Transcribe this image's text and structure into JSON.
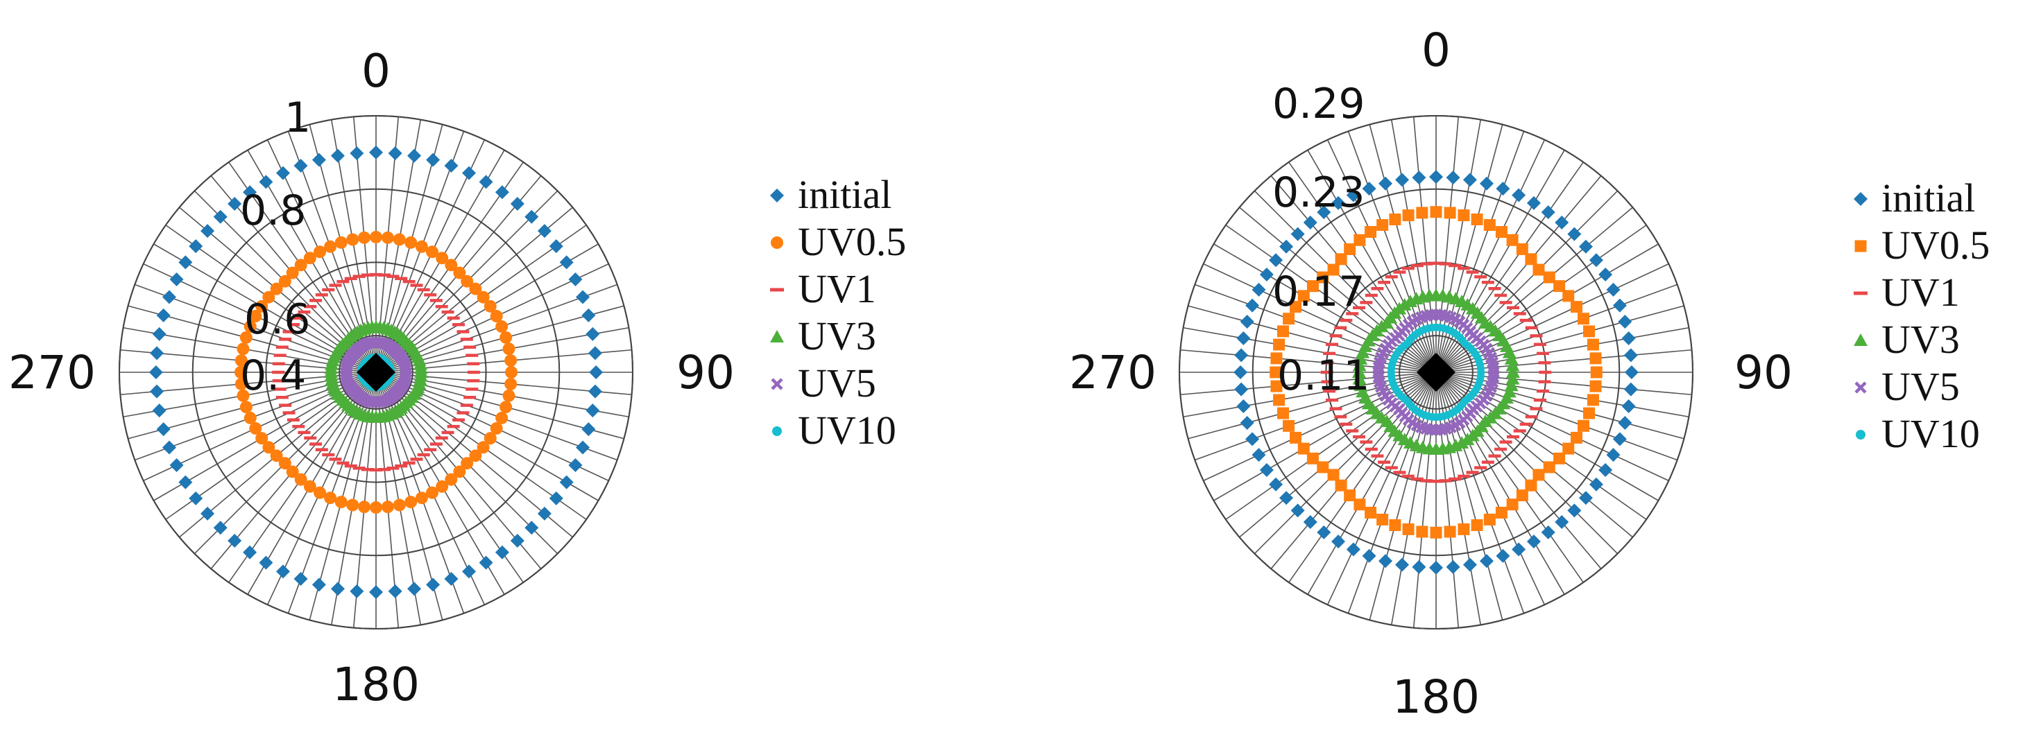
{
  "chart_data": [
    {
      "type": "scatter",
      "subtype": "polar",
      "angle_labels": [
        "0",
        "90",
        "180",
        "270"
      ],
      "radial_tick_labels": [
        "0.4",
        "0.6",
        "0.8",
        "1"
      ],
      "rlim": [
        0.3,
        1.0
      ],
      "grid": true,
      "legend_position": "right",
      "series": [
        {
          "name": "initial",
          "color": "#1f77b4",
          "marker": "diamond",
          "r": 0.9
        },
        {
          "name": "UV0.5",
          "color": "#ff7f0e",
          "marker": "circle",
          "r": 0.66,
          "aspect_lr": 1.0
        },
        {
          "name": "UV1",
          "color": "#e8474a",
          "marker": "dash",
          "r": 0.56
        },
        {
          "name": "UV3",
          "color": "#4caf3a",
          "marker": "triangle",
          "r": 0.42
        },
        {
          "name": "UV5",
          "color": "#9467bd",
          "marker": "x",
          "r": 0.38
        },
        {
          "name": "UV10",
          "color": "#17becf",
          "marker": "dot",
          "r": 0.34
        }
      ]
    },
    {
      "type": "scatter",
      "subtype": "polar",
      "angle_labels": [
        "0",
        "90",
        "180",
        "270"
      ],
      "radial_tick_labels": [
        "0.11",
        "0.17",
        "0.23",
        "0.29"
      ],
      "rlim": [
        0.08,
        0.29
      ],
      "grid": true,
      "legend_position": "right",
      "series": [
        {
          "name": "initial",
          "color": "#1f77b4",
          "marker": "diamond",
          "r": 0.24
        },
        {
          "name": "UV0.5",
          "color": "#ff7f0e",
          "marker": "square",
          "r": 0.205
        },
        {
          "name": "UV1",
          "color": "#e8474a",
          "marker": "dash",
          "r": 0.165
        },
        {
          "name": "UV3",
          "color": "#4caf3a",
          "marker": "triangle",
          "r": 0.14
        },
        {
          "name": "UV5",
          "color": "#9467bd",
          "marker": "x",
          "r": 0.125
        },
        {
          "name": "UV10",
          "color": "#17becf",
          "marker": "dot",
          "r": 0.115
        }
      ]
    }
  ]
}
